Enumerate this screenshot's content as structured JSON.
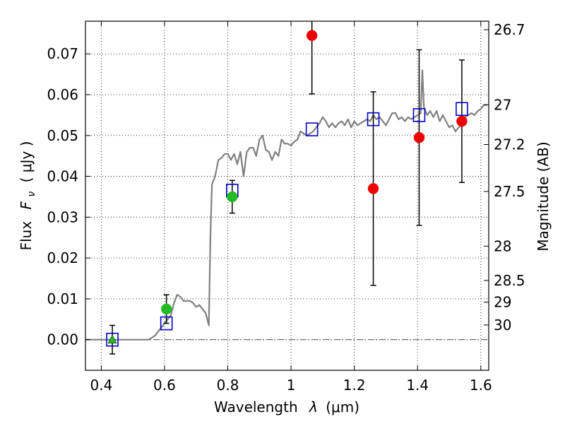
{
  "chart_data": {
    "type": "scatter",
    "xlabel_text": "Wavelength",
    "xlabel_symbol": "λ",
    "xlabel_unit": "(μm)",
    "ylabel_text": "Flux",
    "ylabel_symbol": "F",
    "ylabel_symbol_sub": "ν",
    "ylabel_unit": "( μJy )",
    "y2label": "Magnitude (AB)",
    "xlim": [
      0.35,
      1.625
    ],
    "ylim": [
      -0.0075,
      0.078
    ],
    "grid": true,
    "x_ticks": [
      {
        "value": 0.4,
        "label": "0.4"
      },
      {
        "value": 0.6,
        "label": "0.6"
      },
      {
        "value": 0.8,
        "label": "0.8"
      },
      {
        "value": 1.0,
        "label": "1"
      },
      {
        "value": 1.2,
        "label": "1.2"
      },
      {
        "value": 1.4,
        "label": "1.4"
      },
      {
        "value": 1.6,
        "label": "1.6"
      }
    ],
    "y_ticks": [
      {
        "value": 0.0,
        "label": "0.00"
      },
      {
        "value": 0.01,
        "label": "0.01"
      },
      {
        "value": 0.02,
        "label": "0.02"
      },
      {
        "value": 0.03,
        "label": "0.03"
      },
      {
        "value": 0.04,
        "label": "0.04"
      },
      {
        "value": 0.05,
        "label": "0.05"
      },
      {
        "value": 0.06,
        "label": "0.06"
      },
      {
        "value": 0.07,
        "label": "0.07"
      }
    ],
    "mag_ticks": [
      {
        "value": 0.0759,
        "label": "26.7"
      },
      {
        "value": 0.0575,
        "label": "27"
      },
      {
        "value": 0.0478,
        "label": "27.2"
      },
      {
        "value": 0.0363,
        "label": "27.5"
      },
      {
        "value": 0.0229,
        "label": "28"
      },
      {
        "value": 0.0145,
        "label": "28.5"
      },
      {
        "value": 0.0092,
        "label": "29"
      },
      {
        "value": 0.0036,
        "label": "30"
      }
    ],
    "sed_model": {
      "color": "#808080",
      "x": [
        0.35,
        0.55,
        0.57,
        0.59,
        0.6,
        0.61,
        0.62,
        0.63,
        0.64,
        0.65,
        0.66,
        0.67,
        0.68,
        0.69,
        0.7,
        0.71,
        0.72,
        0.73,
        0.74,
        0.745,
        0.75,
        0.76,
        0.77,
        0.78,
        0.79,
        0.8,
        0.81,
        0.82,
        0.83,
        0.84,
        0.85,
        0.86,
        0.87,
        0.88,
        0.89,
        0.9,
        0.91,
        0.92,
        0.93,
        0.94,
        0.95,
        0.96,
        0.97,
        0.98,
        0.99,
        1.0,
        1.01,
        1.02,
        1.03,
        1.04,
        1.05,
        1.06,
        1.07,
        1.08,
        1.09,
        1.1,
        1.11,
        1.12,
        1.13,
        1.14,
        1.15,
        1.16,
        1.17,
        1.18,
        1.19,
        1.2,
        1.21,
        1.22,
        1.23,
        1.24,
        1.25,
        1.26,
        1.27,
        1.28,
        1.29,
        1.3,
        1.31,
        1.32,
        1.33,
        1.34,
        1.35,
        1.36,
        1.37,
        1.38,
        1.39,
        1.4,
        1.41,
        1.415,
        1.42,
        1.43,
        1.44,
        1.45,
        1.46,
        1.47,
        1.48,
        1.49,
        1.5,
        1.51,
        1.52,
        1.53,
        1.54,
        1.55,
        1.56,
        1.57,
        1.58,
        1.59,
        1.6,
        1.61,
        1.62
      ],
      "y": [
        0.0,
        0.0,
        0.001,
        0.003,
        0.004,
        0.005,
        0.006,
        0.009,
        0.011,
        0.0105,
        0.0095,
        0.0095,
        0.0095,
        0.009,
        0.008,
        0.0085,
        0.0075,
        0.0065,
        0.0035,
        0.025,
        0.038,
        0.04,
        0.044,
        0.0445,
        0.0455,
        0.0455,
        0.044,
        0.0455,
        0.043,
        0.046,
        0.04,
        0.046,
        0.047,
        0.047,
        0.045,
        0.049,
        0.05,
        0.0465,
        0.046,
        0.044,
        0.046,
        0.045,
        0.049,
        0.048,
        0.048,
        0.0475,
        0.0485,
        0.049,
        0.051,
        0.0505,
        0.05,
        0.0505,
        0.051,
        0.052,
        0.053,
        0.0545,
        0.0535,
        0.052,
        0.053,
        0.052,
        0.053,
        0.0535,
        0.0525,
        0.054,
        0.052,
        0.0535,
        0.0525,
        0.053,
        0.0535,
        0.054,
        0.0535,
        0.055,
        0.054,
        0.0545,
        0.0535,
        0.0525,
        0.054,
        0.0555,
        0.0555,
        0.054,
        0.0545,
        0.0535,
        0.0545,
        0.054,
        0.0545,
        0.055,
        0.0555,
        0.066,
        0.057,
        0.055,
        0.056,
        0.0545,
        0.056,
        0.0535,
        0.055,
        0.0535,
        0.052,
        0.0525,
        0.051,
        0.052,
        0.0525,
        0.0545,
        0.055,
        0.0555,
        0.055,
        0.056,
        0.0565,
        0.0575,
        0.0575
      ]
    },
    "model_photometry": {
      "marker": "open-square",
      "color": "#0000cc",
      "x": [
        0.435,
        0.606,
        0.814,
        1.066,
        1.26,
        1.405,
        1.54
      ],
      "y": [
        0.0,
        0.004,
        0.0365,
        0.0515,
        0.054,
        0.055,
        0.0565
      ]
    },
    "observed_hst_optical": {
      "marker": "filled-circle",
      "color": "#22bb22",
      "x": [
        0.606,
        0.814
      ],
      "y": [
        0.0075,
        0.035
      ],
      "yerr_low": [
        0.0035,
        0.004
      ],
      "yerr_high": [
        0.0035,
        0.004
      ]
    },
    "observed_upper_limit": {
      "marker": "filled-triangle",
      "color": "#22bb22",
      "x": [
        0.435
      ],
      "y": [
        0.0
      ],
      "yerr_low": [
        0.0035
      ],
      "yerr_high": [
        0.0035
      ]
    },
    "observed_ir": {
      "marker": "filled-circle",
      "color": "#ee0000",
      "x": [
        1.066,
        1.26,
        1.405,
        1.54
      ],
      "y": [
        0.0745,
        0.037,
        0.0495,
        0.0535
      ],
      "yerr_low": [
        0.0143,
        0.0237,
        0.0215,
        0.015
      ],
      "yerr_high": [
        0.0143,
        0.0237,
        0.0215,
        0.015
      ]
    }
  }
}
